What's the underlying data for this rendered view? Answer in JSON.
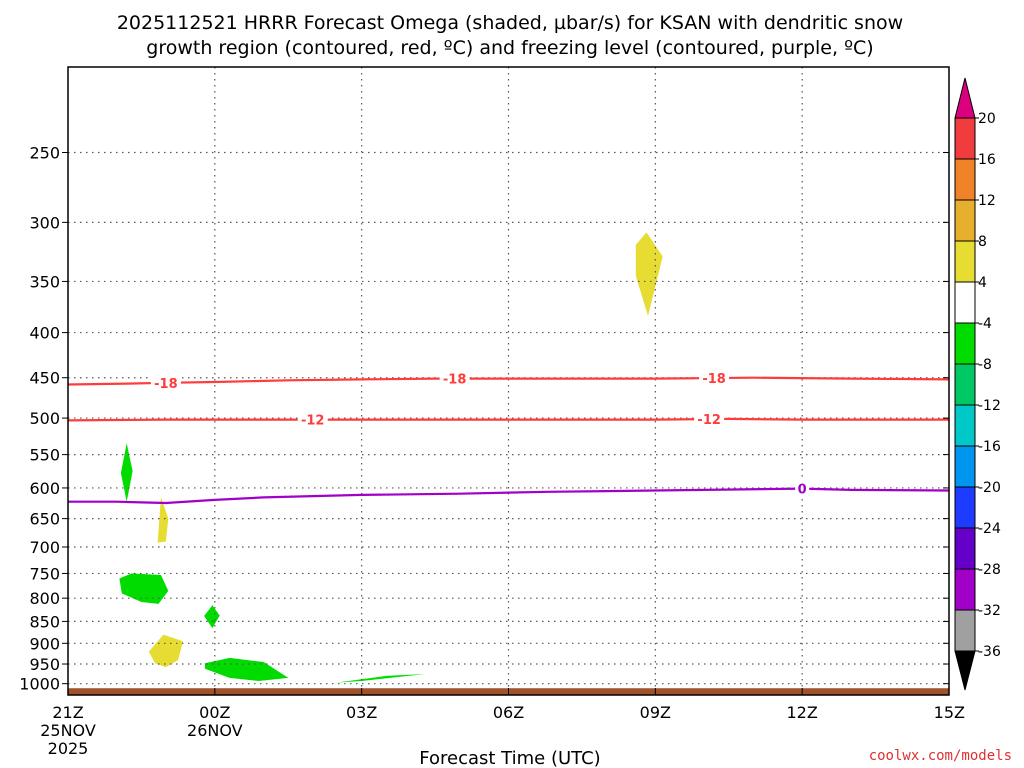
{
  "chart_data": {
    "type": "contour-timeheight",
    "title_line1": "2025112521 HRRR Forecast Omega (shaded, µbar/s) for KSAN with dendritic snow",
    "title_line2": "growth region (contoured, red, ºC) and freezing level (contoured, purple, ºC)",
    "xlabel": "Forecast Time (UTC)",
    "credit": "coolwx.com/models",
    "x_unit": "forecast hour",
    "x_range": [
      0,
      18
    ],
    "x_ticks": [
      {
        "hour": 0,
        "label": "21Z",
        "sub1": "25NOV",
        "sub2": "2025"
      },
      {
        "hour": 3,
        "label": "00Z",
        "sub1": "26NOV",
        "sub2": ""
      },
      {
        "hour": 6,
        "label": "03Z",
        "sub1": "",
        "sub2": ""
      },
      {
        "hour": 9,
        "label": "06Z",
        "sub1": "",
        "sub2": ""
      },
      {
        "hour": 12,
        "label": "09Z",
        "sub1": "",
        "sub2": ""
      },
      {
        "hour": 15,
        "label": "12Z",
        "sub1": "",
        "sub2": ""
      },
      {
        "hour": 18,
        "label": "15Z",
        "sub1": "",
        "sub2": ""
      }
    ],
    "y_unit": "hPa",
    "y_scale": "log",
    "y_range": [
      1030,
      200
    ],
    "y_ticks": [
      250,
      300,
      350,
      400,
      450,
      500,
      550,
      600,
      650,
      700,
      750,
      800,
      850,
      900,
      950,
      1000
    ],
    "ground_level_hpa": 1012,
    "ground_color": "#a0522d",
    "contours": [
      {
        "name": "dgz-minus18",
        "label": "-18",
        "color": "#ff3c3c",
        "points": [
          [
            0,
            458
          ],
          [
            1.2,
            457
          ],
          [
            2,
            456
          ],
          [
            3,
            455
          ],
          [
            4.5,
            453
          ],
          [
            6,
            452
          ],
          [
            7.5,
            451
          ],
          [
            9,
            451
          ],
          [
            10.5,
            451
          ],
          [
            12,
            451
          ],
          [
            14,
            450
          ],
          [
            16,
            451
          ],
          [
            18,
            452
          ]
        ],
        "label_hours": [
          2,
          7.9,
          13.2
        ]
      },
      {
        "name": "dgz-minus12",
        "label": "-12",
        "color": "#ff3c3c",
        "points": [
          [
            0,
            503
          ],
          [
            2,
            502
          ],
          [
            4,
            502
          ],
          [
            6,
            502
          ],
          [
            8,
            502
          ],
          [
            10,
            502
          ],
          [
            12,
            502
          ],
          [
            13.5,
            501
          ],
          [
            15,
            502
          ],
          [
            18,
            502
          ]
        ],
        "label_hours": [
          5,
          13.1
        ]
      },
      {
        "name": "freezing-level",
        "label": "0",
        "color": "#a000c8",
        "points": [
          [
            0,
            622
          ],
          [
            1,
            622
          ],
          [
            2,
            624
          ],
          [
            3,
            619
          ],
          [
            4,
            615
          ],
          [
            6,
            611
          ],
          [
            8,
            609
          ],
          [
            9.8,
            606
          ],
          [
            11,
            605
          ],
          [
            13,
            603
          ],
          [
            15,
            601
          ],
          [
            16,
            603
          ],
          [
            18,
            604
          ]
        ],
        "label_hours": [
          15
        ]
      }
    ],
    "shaded_regions": [
      {
        "name": "omega-pos-4-8-upper",
        "bin": "4 to 8",
        "color": "#e6dc32",
        "points": [
          [
            11.6,
            318
          ],
          [
            11.82,
            308
          ],
          [
            12.15,
            328
          ],
          [
            11.85,
            383
          ],
          [
            11.6,
            345
          ]
        ]
      },
      {
        "name": "omega-neg-4-8-a",
        "bin": "-8 to -4",
        "color": "#00dc00",
        "points": [
          [
            1.2,
            534
          ],
          [
            1.32,
            574
          ],
          [
            1.2,
            622
          ],
          [
            1.08,
            577
          ]
        ]
      },
      {
        "name": "omega-pos-4-8-b",
        "bin": "4 to 8",
        "color": "#e6dc32",
        "points": [
          [
            1.9,
            615
          ],
          [
            2.05,
            650
          ],
          [
            2.0,
            690
          ],
          [
            1.83,
            692
          ]
        ]
      },
      {
        "name": "omega-neg-4-8-b",
        "bin": "-8 to -4",
        "color": "#00dc00",
        "points": [
          [
            1.05,
            760
          ],
          [
            1.3,
            750
          ],
          [
            1.9,
            753
          ],
          [
            2.05,
            785
          ],
          [
            1.85,
            812
          ],
          [
            1.5,
            808
          ],
          [
            1.1,
            790
          ]
        ]
      },
      {
        "name": "omega-neg-4-8-c",
        "bin": "-8 to -4",
        "color": "#00dc00",
        "points": [
          [
            2.95,
            815
          ],
          [
            3.1,
            837
          ],
          [
            2.95,
            865
          ],
          [
            2.78,
            838
          ]
        ]
      },
      {
        "name": "omega-pos-4-8-c",
        "bin": "4 to 8",
        "color": "#e6dc32",
        "points": [
          [
            1.65,
            920
          ],
          [
            1.95,
            880
          ],
          [
            2.35,
            895
          ],
          [
            2.25,
            940
          ],
          [
            2.0,
            958
          ],
          [
            1.78,
            948
          ]
        ]
      },
      {
        "name": "omega-neg-4-8-d",
        "bin": "-8 to -4",
        "color": "#00dc00",
        "points": [
          [
            2.8,
            948
          ],
          [
            3.3,
            935
          ],
          [
            4.0,
            945
          ],
          [
            4.5,
            985
          ],
          [
            3.9,
            993
          ],
          [
            3.3,
            985
          ],
          [
            2.8,
            962
          ]
        ]
      },
      {
        "name": "omega-neg-4-8-e",
        "bin": "-8 to -4",
        "color": "#00dc00",
        "points": [
          [
            5.5,
            997
          ],
          [
            6.5,
            980
          ],
          [
            7.3,
            975
          ],
          [
            6.0,
            993
          ]
        ]
      }
    ],
    "colorbar": {
      "labels": [
        "20",
        "16",
        "12",
        "8",
        "4",
        "-4",
        "-8",
        "-12",
        "-16",
        "-20",
        "-24",
        "-28",
        "-32",
        "-36"
      ],
      "top_arrow_color": "#dc0080",
      "bottom_arrow_color": "#000000",
      "bins": [
        {
          "color": "#f03c3c",
          "range": "16 to 20"
        },
        {
          "color": "#f08228",
          "range": "12 to 16"
        },
        {
          "color": "#e6af2d",
          "range": "8 to 12"
        },
        {
          "color": "#e6dc32",
          "range": "4 to 8"
        },
        {
          "color": "#ffffff",
          "range": "-4 to 4"
        },
        {
          "color": "#00dc00",
          "range": "-8 to -4"
        },
        {
          "color": "#00c864",
          "range": "-12 to -8"
        },
        {
          "color": "#00c8c8",
          "range": "-16 to -12"
        },
        {
          "color": "#0096f0",
          "range": "-20 to -16"
        },
        {
          "color": "#1e3cff",
          "range": "-24 to -20"
        },
        {
          "color": "#6400c8",
          "range": "-28 to -24"
        },
        {
          "color": "#a000c8",
          "range": "-32 to -28"
        },
        {
          "color": "#a0a0a0",
          "range": "-36 to -32"
        }
      ]
    }
  }
}
